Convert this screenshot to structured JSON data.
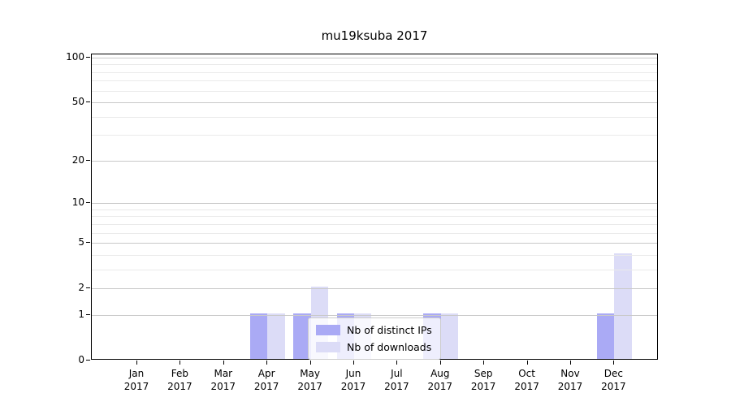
{
  "title": "mu19ksuba 2017",
  "colors": {
    "distinct_ips": "#aaaaf5",
    "downloads": "#dcdcf7",
    "grid_major": "#c9c9c9",
    "grid_minor": "#eaeaea",
    "spine": "#000000",
    "legend_border": "#cccccc"
  },
  "legend": {
    "items": [
      {
        "label": "Nb of distinct IPs",
        "color_key": "distinct_ips"
      },
      {
        "label": "Nb of downloads",
        "color_key": "downloads"
      }
    ]
  },
  "chart_data": {
    "type": "bar",
    "title": "mu19ksuba 2017",
    "xlabel": "",
    "ylabel": "",
    "year": "2017",
    "categories": [
      "Jan",
      "Feb",
      "Mar",
      "Apr",
      "May",
      "Jun",
      "Jul",
      "Aug",
      "Sep",
      "Oct",
      "Nov",
      "Dec"
    ],
    "series": [
      {
        "name": "Nb of distinct IPs",
        "color_key": "distinct_ips",
        "values": [
          0,
          0,
          0,
          1,
          1,
          1,
          0,
          1,
          0,
          0,
          0,
          1
        ]
      },
      {
        "name": "Nb of downloads",
        "color_key": "downloads",
        "values": [
          0,
          0,
          0,
          1,
          2,
          1,
          0,
          1,
          0,
          0,
          0,
          4
        ]
      }
    ],
    "y_scale": "log1p",
    "ylim": [
      0,
      105
    ],
    "y_major_ticks": [
      0,
      1,
      2,
      5,
      10,
      20,
      50,
      100
    ],
    "y_minor_ticks": [
      3,
      4,
      6,
      7,
      8,
      9,
      30,
      40,
      60,
      70,
      80,
      90
    ],
    "grid": "on",
    "legend_position": "lower center"
  }
}
